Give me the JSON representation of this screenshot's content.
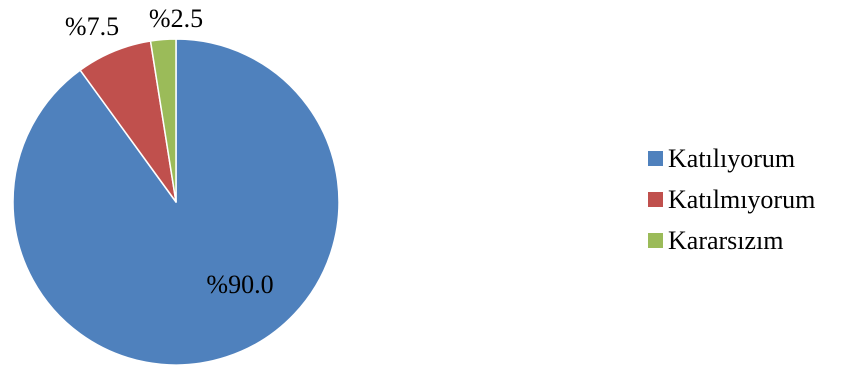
{
  "chart_data": {
    "type": "pie",
    "title": "",
    "slices": [
      {
        "name": "Katılıyorum",
        "value": 90.0,
        "label": "%90.0",
        "color": "#4F81BD"
      },
      {
        "name": "Katılmıyorum",
        "value": 7.5,
        "label": "%7.5",
        "color": "#C0504D"
      },
      {
        "name": "Kararsızım",
        "value": 2.5,
        "label": "%2.5",
        "color": "#9BBB59"
      }
    ],
    "start": "12 o'clock",
    "direction": "clockwise",
    "legend_position": "right"
  }
}
